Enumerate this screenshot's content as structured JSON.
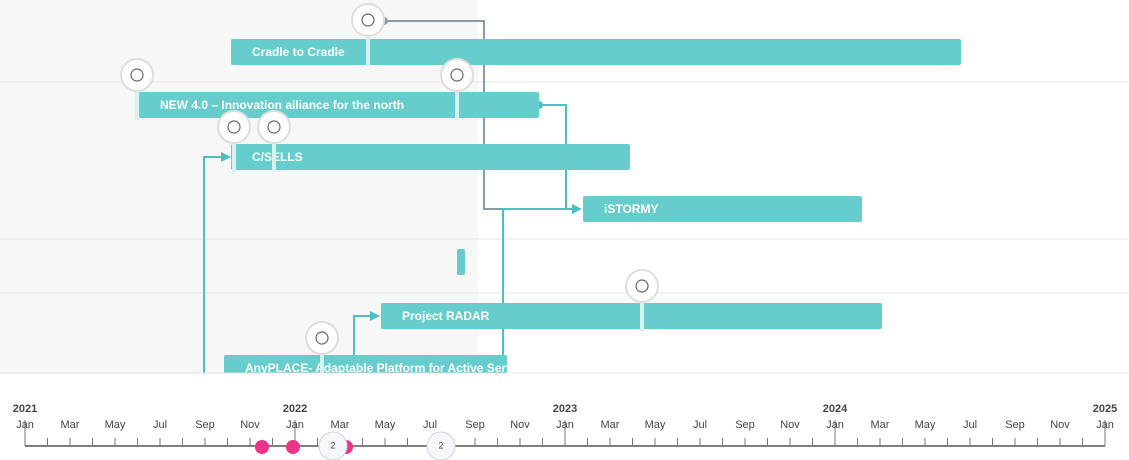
{
  "rows": [
    {
      "label": "Cradle to Cradle"
    },
    {
      "label": "NEW 4.0 – Innovation alliance for the north"
    },
    {
      "label": "C/SELLS"
    },
    {
      "label": "iSTORMY"
    },
    {
      "label": "Project RADAR"
    },
    {
      "label": "AnyPLACE- Adaptable Platform for Active Services"
    }
  ],
  "timeline": {
    "years": [
      "2021",
      "2022",
      "2023",
      "2024",
      "2025"
    ],
    "months": [
      "Jan",
      "Mar",
      "May",
      "Jul",
      "Sep",
      "Nov",
      "Jan",
      "Mar",
      "May",
      "Jul",
      "Sep",
      "Nov",
      "Jan",
      "Mar",
      "May",
      "Jul",
      "Sep",
      "Nov",
      "Jan",
      "Mar",
      "May",
      "Jul",
      "Sep",
      "Nov",
      "Jan"
    ],
    "clusters": [
      "2",
      "2"
    ]
  }
}
